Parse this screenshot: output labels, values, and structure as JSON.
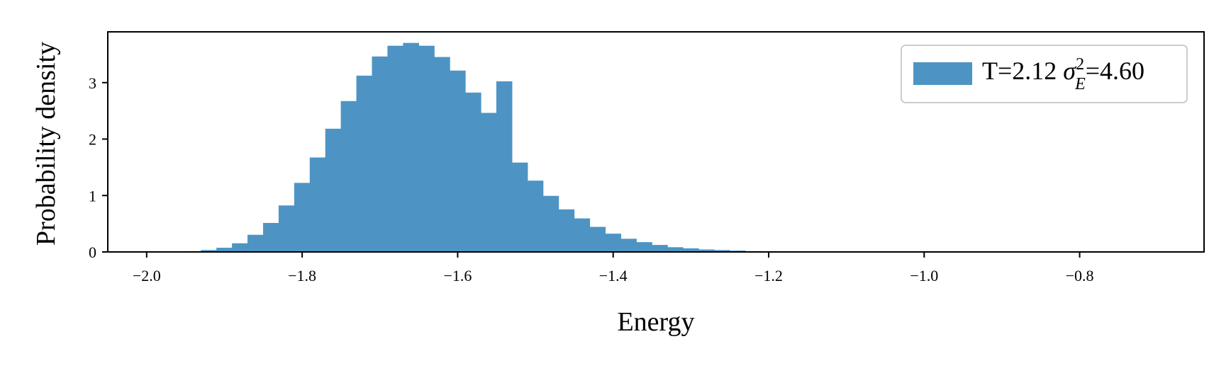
{
  "chart_data": {
    "type": "bar",
    "subtype": "histogram",
    "xlabel": "Energy",
    "ylabel": "Probability density",
    "xlim": [
      -2.05,
      -0.64
    ],
    "ylim": [
      0,
      3.9
    ],
    "xticks": [
      -2.0,
      -1.8,
      -1.6,
      -1.4,
      -1.2,
      -1.0,
      -0.8
    ],
    "xtick_labels": [
      "−2.0",
      "−1.8",
      "−1.6",
      "−1.4",
      "−1.2",
      "−1.0",
      "−0.8"
    ],
    "yticks": [
      0,
      1,
      2,
      3
    ],
    "ytick_labels": [
      "0",
      "1",
      "2",
      "3"
    ],
    "grid": false,
    "legend_position": "top-right",
    "color": "#4d94c4",
    "bin_width": 0.02,
    "bin_start": -1.95,
    "values": [
      0.01,
      0.03,
      0.07,
      0.15,
      0.3,
      0.51,
      0.82,
      1.22,
      1.67,
      2.18,
      2.67,
      3.12,
      3.46,
      3.65,
      3.7,
      3.65,
      3.45,
      3.21,
      2.82,
      2.46,
      3.02,
      1.58,
      1.26,
      0.99,
      0.75,
      0.59,
      0.44,
      0.32,
      0.23,
      0.17,
      0.12,
      0.08,
      0.06,
      0.04,
      0.03,
      0.02,
      0.01,
      0.005
    ],
    "series": [
      {
        "name_main": "T=2.12 ",
        "sigma": "σ",
        "sup": "2",
        "sub": "E",
        "name_rest": "=4.60"
      }
    ]
  }
}
